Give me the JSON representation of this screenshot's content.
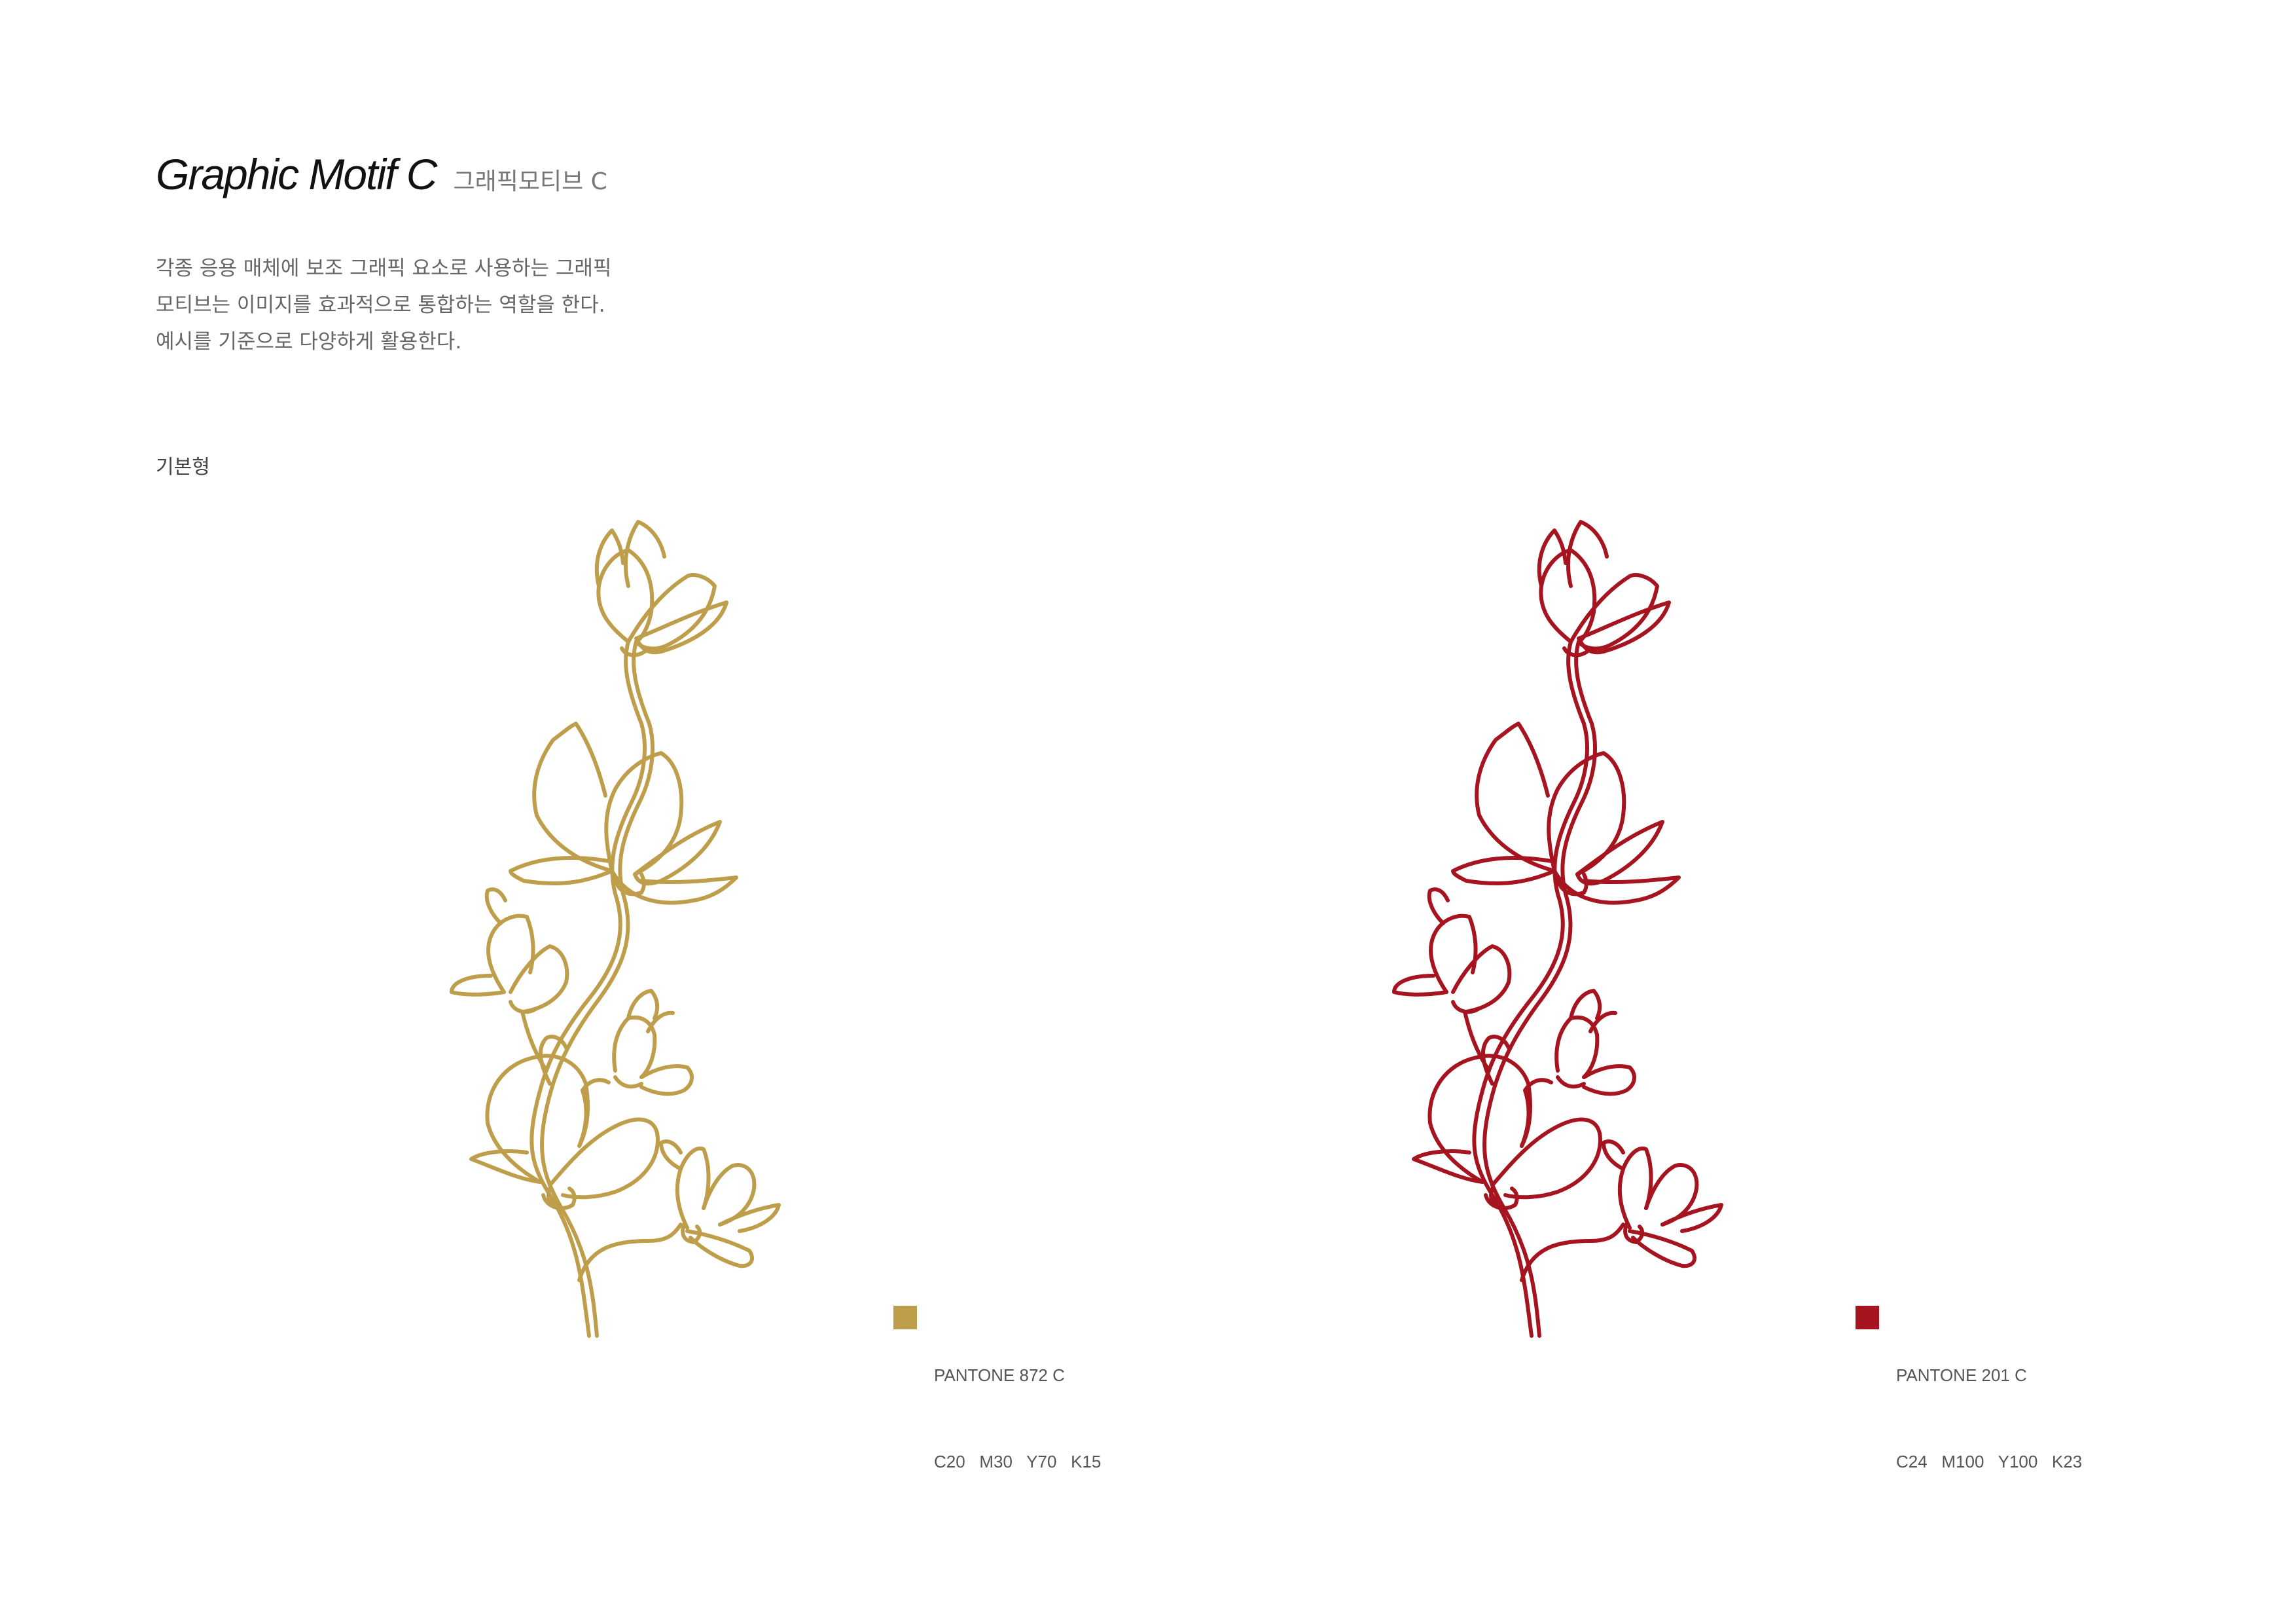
{
  "header": {
    "title": "Graphic Motif C",
    "subtitle": "그래픽모티브 C"
  },
  "description": {
    "lines": [
      "각종 응용 매체에 보조 그래픽 요소로 사용하는 그래픽",
      "모티브는 이미지를 효과적으로 통합하는 역할을 한다.",
      "예시를 기준으로 다양하게 활용한다."
    ]
  },
  "section": {
    "label": "기본형"
  },
  "motifs": [
    {
      "color": "#BE9E4B",
      "icon": "magnolia-branch-outline",
      "pantone": "PANTONE 872 C",
      "cmyk": "C20   M30   Y70   K15"
    },
    {
      "color": "#A5141F",
      "icon": "magnolia-branch-outline",
      "pantone": "PANTONE 201 C",
      "cmyk": "C24   M100   Y100   K23"
    }
  ]
}
